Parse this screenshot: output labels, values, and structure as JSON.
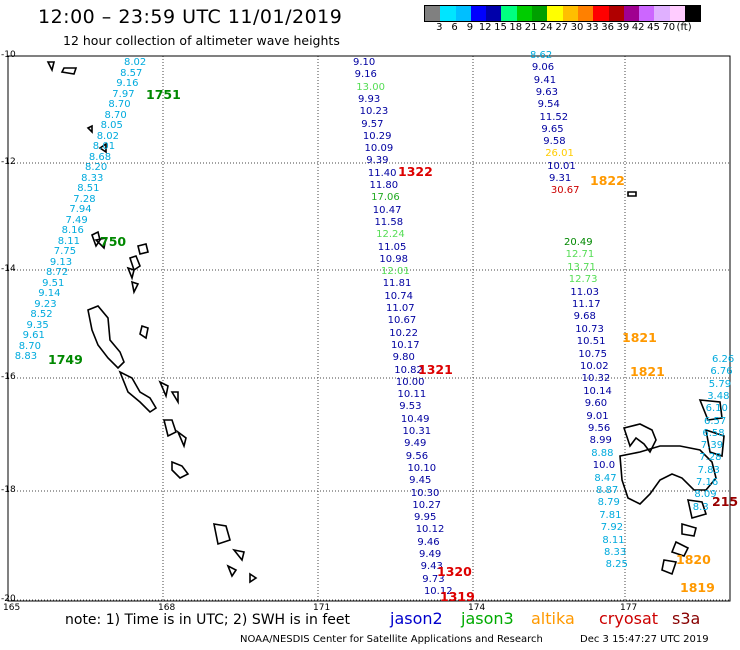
{
  "header": {
    "title": "12:00 – 23:59 UTC 11/01/2019",
    "subtitle": "12 hour collection of altimeter wave heights"
  },
  "colorbar": {
    "colors": [
      "#808080",
      "#00e5ff",
      "#00bfff",
      "#0000ff",
      "#0000aa",
      "#00ff80",
      "#00cc00",
      "#00a000",
      "#ffff00",
      "#ffbf00",
      "#ff8000",
      "#ff0000",
      "#b00000",
      "#a00090",
      "#cc66ff",
      "#e0b0ff",
      "#ffccff",
      "#000000"
    ],
    "labels": [
      "3",
      "6",
      "9",
      "12",
      "15",
      "18",
      "21",
      "24",
      "27",
      "30",
      "33",
      "36",
      "39",
      "42",
      "45",
      "70",
      "(ft)"
    ]
  },
  "axes": {
    "lat_labels": [
      "-10",
      "-12",
      "-14",
      "-16",
      "-18",
      "-20"
    ],
    "lon_labels": [
      "165",
      "168",
      "171",
      "174",
      "177"
    ]
  },
  "tracks": {
    "west_cyan": [
      "8.02",
      "8.57",
      "9.16",
      "7.97",
      "8.70",
      "8.70",
      "8.05",
      "8.02",
      "8.01",
      "8.68",
      "8.20",
      "8.33",
      "8.51",
      "7.28",
      "7.94",
      "7.49",
      "8.16",
      "8.11",
      "7.75",
      "9.13",
      "8.72",
      "9.51",
      "9.14",
      "9.23",
      "8.52",
      "9.35",
      "9.61",
      "8.70",
      "8.83"
    ],
    "center_blue": [
      "9.10",
      "9.16",
      "13.00",
      "9.93",
      "10.23",
      "9.57",
      "10.29",
      "10.09",
      "9.39",
      "11.40",
      "11.80",
      "17.06",
      "10.47",
      "11.58",
      "12.24",
      "11.05",
      "10.98",
      "12.01",
      "11.81",
      "10.74",
      "11.07",
      "10.67",
      "10.22",
      "10.17",
      "9.80",
      "10.82",
      "10.00",
      "10.11",
      "9.53",
      "10.49",
      "10.31",
      "9.49",
      "9.56",
      "10.10",
      "9.45",
      "10.30",
      "10.27",
      "9.95",
      "10.12",
      "9.46",
      "9.49",
      "9.43",
      "9.73",
      "10.12"
    ],
    "center_blue_colors": [
      "#0000a0",
      "#0000a0",
      "#55dd55",
      "#0000a0",
      "#0000a0",
      "#0000a0",
      "#0000a0",
      "#0000a0",
      "#0000a0",
      "#0000a0",
      "#0000a0",
      "#22aa22",
      "#0000a0",
      "#0000a0",
      "#55dd55",
      "#0000a0",
      "#0000a0",
      "#55dd55",
      "#0000a0",
      "#0000a0",
      "#0000a0",
      "#0000a0",
      "#0000a0",
      "#0000a0",
      "#0000a0",
      "#0000a0",
      "#0000a0",
      "#0000a0",
      "#0000a0",
      "#0000a0",
      "#0000a0",
      "#0000a0",
      "#0000a0",
      "#0000a0",
      "#0000a0",
      "#0000a0",
      "#0000a0",
      "#0000a0",
      "#0000a0",
      "#0000a0",
      "#0000a0",
      "#0000a0",
      "#0000a0",
      "#0000a0"
    ],
    "east_upper": [
      "8.62",
      "9.06",
      "9.41",
      "9.63",
      "9.54",
      "11.52",
      "9.65",
      "9.58",
      "26.01",
      "10.01",
      "9.31",
      "30.67"
    ],
    "east_upper_colors": [
      "#00aadd",
      "#0000a0",
      "#0000a0",
      "#0000a0",
      "#0000a0",
      "#0000a0",
      "#0000a0",
      "#0000a0",
      "#ffcc00",
      "#0000a0",
      "#0000a0",
      "#cc0000"
    ],
    "east_lower": [
      "20.49",
      "12.71",
      "13.71",
      "12.73",
      "11.03",
      "11.17",
      "9.68",
      "10.73",
      "10.51",
      "10.75",
      "10.02",
      "10.32",
      "10.14",
      "9.60",
      "9.01",
      "9.56",
      "8.99",
      "8.88",
      "10.0",
      "8.47",
      "8.87",
      "8.79",
      "7.81",
      "7.92",
      "8.11",
      "8.33",
      "8.25"
    ],
    "east_lower_colors": [
      "#008800",
      "#55dd55",
      "#55dd55",
      "#55dd55",
      "#0000a0",
      "#0000a0",
      "#0000a0",
      "#0000a0",
      "#0000a0",
      "#0000a0",
      "#0000a0",
      "#0000a0",
      "#0000a0",
      "#0000a0",
      "#0000a0",
      "#0000a0",
      "#0000a0",
      "#00aadd",
      "#0000a0",
      "#00aadd",
      "#00aadd",
      "#00aadd",
      "#00aadd",
      "#00aadd",
      "#00aadd",
      "#00aadd",
      "#00aadd"
    ],
    "far_east": [
      "6.26",
      "6.76",
      "5.79",
      "3.48",
      "6.10",
      "6.57",
      "6.58",
      "7.39",
      "7.28",
      "7.83",
      "7.16",
      "8.09",
      "8.3"
    ],
    "far_east_colors": [
      "#00aadd",
      "#00aadd",
      "#00aadd",
      "#00aadd",
      "#00aadd",
      "#00aadd",
      "#00aadd",
      "#00aadd",
      "#00aadd",
      "#00aadd",
      "#00aadd",
      "#00aadd",
      "#00aadd"
    ]
  },
  "times": [
    {
      "t": "1751",
      "color": "#008800"
    },
    {
      "t": "750",
      "color": "#008800"
    },
    {
      "t": "1749",
      "color": "#008800"
    },
    {
      "t": "1322",
      "color": "#dd0000"
    },
    {
      "t": "1321",
      "color": "#dd0000"
    },
    {
      "t": "1320",
      "color": "#dd0000"
    },
    {
      "t": "1319",
      "color": "#dd0000"
    },
    {
      "t": "1822",
      "color": "#ff9900"
    },
    {
      "t": "1821",
      "color": "#ff9900"
    },
    {
      "t": "1821",
      "color": "#ff9900"
    },
    {
      "t": "1820",
      "color": "#ff9900"
    },
    {
      "t": "1819",
      "color": "#ff9900"
    },
    {
      "t": "215",
      "color": "#990000"
    }
  ],
  "footer": {
    "note": "note: 1) Time is in UTC; 2) SWH is in feet",
    "legend": [
      {
        "name": "jason2",
        "color": "#0000cc"
      },
      {
        "name": "jason3",
        "color": "#00aa00"
      },
      {
        "name": "altika",
        "color": "#ff9900"
      },
      {
        "name": "cryosat",
        "color": "#cc0000"
      },
      {
        "name": "s3a",
        "color": "#880000"
      }
    ],
    "credit": "NOAA/NESDIS Center for Satellite Applications and Research",
    "timestamp": "Dec  3 15:47:27 UTC 2019"
  }
}
